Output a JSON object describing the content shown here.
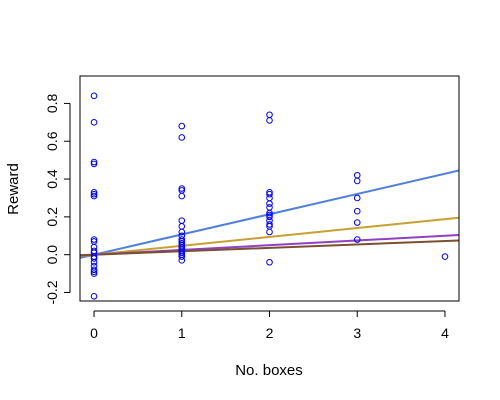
{
  "chart_data": {
    "type": "scatter",
    "title": "",
    "xlabel": "No. boxes",
    "ylabel": "Reward",
    "xlim": [
      -0.16,
      4.16
    ],
    "ylim": [
      -0.245,
      0.945
    ],
    "xticks": [
      0,
      1,
      2,
      3,
      4
    ],
    "xtick_labels": [
      "0",
      "1",
      "2",
      "3",
      "4"
    ],
    "yticks": [
      -0.2,
      0.0,
      0.2,
      0.4,
      0.6,
      0.8
    ],
    "ytick_labels": [
      "-0.2",
      "0.0",
      "0.2",
      "0.4",
      "0.6",
      "0.8"
    ],
    "grid": false,
    "legend": "none",
    "series": [
      {
        "kind": "points",
        "marker": "open-circle",
        "color": "#0000ff",
        "points": [
          [
            0,
            0.84
          ],
          [
            0,
            0.7
          ],
          [
            0,
            0.49
          ],
          [
            0,
            0.48
          ],
          [
            0,
            0.33
          ],
          [
            0,
            0.32
          ],
          [
            0,
            0.31
          ],
          [
            0,
            0.08
          ],
          [
            0,
            0.07
          ],
          [
            0,
            0.04
          ],
          [
            0,
            0.02
          ],
          [
            0,
            0.01
          ],
          [
            0,
            -0.01
          ],
          [
            0,
            -0.02
          ],
          [
            0,
            -0.04
          ],
          [
            0,
            -0.06
          ],
          [
            0,
            -0.08
          ],
          [
            0,
            -0.09
          ],
          [
            0,
            -0.1
          ],
          [
            0,
            -0.22
          ],
          [
            1,
            0.68
          ],
          [
            1,
            0.62
          ],
          [
            1,
            0.35
          ],
          [
            1,
            0.34
          ],
          [
            1,
            0.31
          ],
          [
            1,
            0.18
          ],
          [
            1,
            0.15
          ],
          [
            1,
            0.12
          ],
          [
            1,
            0.1
          ],
          [
            1,
            0.08
          ],
          [
            1,
            0.07
          ],
          [
            1,
            0.06
          ],
          [
            1,
            0.05
          ],
          [
            1,
            0.04
          ],
          [
            1,
            0.03
          ],
          [
            1,
            0.02
          ],
          [
            1,
            0.01
          ],
          [
            1,
            0.0
          ],
          [
            1,
            -0.01
          ],
          [
            1,
            -0.03
          ],
          [
            2,
            0.74
          ],
          [
            2,
            0.71
          ],
          [
            2,
            0.33
          ],
          [
            2,
            0.32
          ],
          [
            2,
            0.3
          ],
          [
            2,
            0.27
          ],
          [
            2,
            0.25
          ],
          [
            2,
            0.22
          ],
          [
            2,
            0.21
          ],
          [
            2,
            0.2
          ],
          [
            2,
            0.18
          ],
          [
            2,
            0.16
          ],
          [
            2,
            0.15
          ],
          [
            2,
            0.12
          ],
          [
            2,
            -0.04
          ],
          [
            3,
            0.42
          ],
          [
            3,
            0.39
          ],
          [
            3,
            0.3
          ],
          [
            3,
            0.23
          ],
          [
            3,
            0.17
          ],
          [
            3,
            0.08
          ],
          [
            4,
            -0.01
          ]
        ]
      },
      {
        "kind": "line",
        "color": "#4f7fdf",
        "intercept": 0.0,
        "slope": 0.107
      },
      {
        "kind": "line",
        "color": "#c8a032",
        "intercept": 0.0,
        "slope": 0.047
      },
      {
        "kind": "line",
        "color": "#9040c0",
        "intercept": 0.0,
        "slope": 0.025
      },
      {
        "kind": "line",
        "color": "#7a5030",
        "intercept": 0.0,
        "slope": 0.018
      }
    ]
  }
}
